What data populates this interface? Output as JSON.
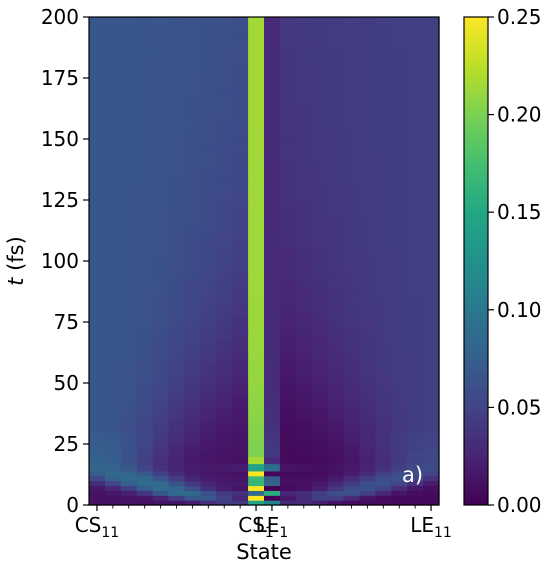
{
  "chart_data": {
    "type": "heatmap",
    "title": "",
    "panel_label": "a)",
    "xlabel": "State",
    "ylabel_var": "t",
    "ylabel_unit": " (fs)",
    "n_states": 22,
    "x_tick_labels": [
      {
        "index": 0,
        "base": "CS",
        "sub": "11"
      },
      {
        "index": 10,
        "base": "CS",
        "sub": "1"
      },
      {
        "index": 11,
        "base": "LE",
        "sub": "1"
      },
      {
        "index": 21,
        "base": "LE",
        "sub": "11"
      }
    ],
    "y_ticks": [
      0,
      25,
      50,
      75,
      100,
      125,
      150,
      175,
      200
    ],
    "ylim": [
      0,
      200
    ],
    "time_samples": [
      0,
      2,
      4,
      6,
      8,
      10,
      12,
      14,
      17,
      20,
      25,
      30,
      40,
      50,
      60,
      70,
      80,
      90,
      100,
      110,
      120,
      130,
      140,
      150,
      160,
      170,
      180,
      190,
      200
    ],
    "population_at_t0": "LE1 = 1 (all other states 0)",
    "central_oscillation": "CS1 and LE1 alternate with ~2.5 fs period, damped; near 0.20-0.25 for CS1 band after ~20 fs",
    "wavepacket_spread": "population spreads symmetrically to outer CS and LE states within ~60 fs, outer states ~0.03-0.06",
    "colorbar": {
      "colormap": "viridis",
      "min": 0,
      "max": 0.25,
      "ticks": [
        "0.00",
        "0.05",
        "0.10",
        "0.15",
        "0.20",
        "0.25"
      ]
    }
  }
}
